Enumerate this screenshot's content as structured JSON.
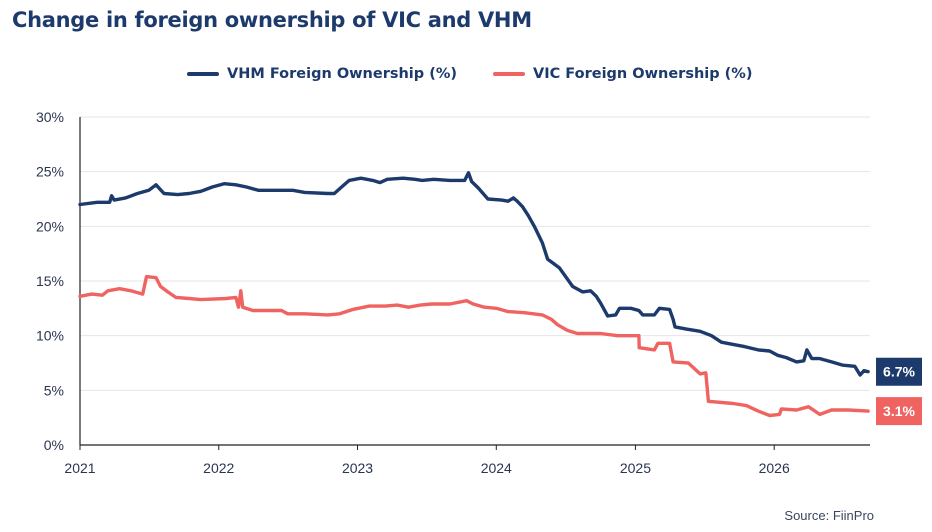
{
  "title": "Change in foreign ownership of VIC and VHM",
  "source": "Source: FiinPro",
  "colors": {
    "vhm": "#1c3a6b",
    "vic": "#ef6461",
    "axis": "#222222",
    "grid": "#e6e6e6",
    "title": "#1c3a6b"
  },
  "chart_data": {
    "type": "line",
    "title": "Change in foreign ownership of VIC and VHM",
    "xlabel": "",
    "ylabel": "",
    "x_ticks": [
      "2021",
      "2022",
      "2023",
      "2024",
      "2025",
      "2026"
    ],
    "y_ticks": [
      "0%",
      "5%",
      "10%",
      "15%",
      "20%",
      "25%",
      "30%"
    ],
    "xlim": [
      "2021-01-01",
      "2026-09-10"
    ],
    "ylim": [
      0,
      30
    ],
    "grid": "horizontal",
    "legend_position": "top-center",
    "series": [
      {
        "name": "VHM Foreign Ownership (%)",
        "color": "#1c3a6b",
        "end_label": "6.7%",
        "points": [
          [
            "2021-01-01",
            22.0
          ],
          [
            "2021-02-15",
            22.2
          ],
          [
            "2021-03-20",
            22.2
          ],
          [
            "2021-03-25",
            22.8
          ],
          [
            "2021-04-01",
            22.4
          ],
          [
            "2021-05-01",
            22.6
          ],
          [
            "2021-06-01",
            23.0
          ],
          [
            "2021-07-01",
            23.3
          ],
          [
            "2021-07-20",
            23.8
          ],
          [
            "2021-08-10",
            23.0
          ],
          [
            "2021-09-15",
            22.9
          ],
          [
            "2021-10-15",
            23.0
          ],
          [
            "2021-11-15",
            23.2
          ],
          [
            "2021-12-15",
            23.6
          ],
          [
            "2022-01-15",
            23.9
          ],
          [
            "2022-02-15",
            23.8
          ],
          [
            "2022-03-15",
            23.6
          ],
          [
            "2022-04-15",
            23.3
          ],
          [
            "2022-06-01",
            23.3
          ],
          [
            "2022-07-15",
            23.3
          ],
          [
            "2022-08-15",
            23.1
          ],
          [
            "2022-10-15",
            23.0
          ],
          [
            "2022-11-01",
            23.0
          ],
          [
            "2022-11-20",
            23.6
          ],
          [
            "2022-12-10",
            24.2
          ],
          [
            "2023-01-10",
            24.4
          ],
          [
            "2023-02-10",
            24.2
          ],
          [
            "2023-03-01",
            24.0
          ],
          [
            "2023-03-20",
            24.3
          ],
          [
            "2023-05-01",
            24.4
          ],
          [
            "2023-06-01",
            24.3
          ],
          [
            "2023-06-20",
            24.2
          ],
          [
            "2023-07-20",
            24.3
          ],
          [
            "2023-09-01",
            24.2
          ],
          [
            "2023-10-10",
            24.2
          ],
          [
            "2023-10-20",
            24.9
          ],
          [
            "2023-10-28",
            24.1
          ],
          [
            "2023-11-15",
            23.5
          ],
          [
            "2023-12-10",
            22.5
          ],
          [
            "2024-01-15",
            22.4
          ],
          [
            "2024-02-01",
            22.3
          ],
          [
            "2024-02-15",
            22.6
          ],
          [
            "2024-02-25",
            22.3
          ],
          [
            "2024-03-10",
            21.8
          ],
          [
            "2024-03-25",
            21.0
          ],
          [
            "2024-04-10",
            20.0
          ],
          [
            "2024-05-01",
            18.5
          ],
          [
            "2024-05-15",
            17.0
          ],
          [
            "2024-06-15",
            16.2
          ],
          [
            "2024-07-20",
            14.5
          ],
          [
            "2024-08-15",
            14.0
          ],
          [
            "2024-09-05",
            14.1
          ],
          [
            "2024-09-20",
            13.6
          ],
          [
            "2024-10-01",
            13.0
          ],
          [
            "2024-10-20",
            11.8
          ],
          [
            "2024-11-10",
            11.9
          ],
          [
            "2024-11-20",
            12.5
          ],
          [
            "2024-12-20",
            12.5
          ],
          [
            "2025-01-10",
            12.3
          ],
          [
            "2025-01-20",
            11.9
          ],
          [
            "2025-02-20",
            11.9
          ],
          [
            "2025-03-05",
            12.5
          ],
          [
            "2025-04-01",
            12.4
          ],
          [
            "2025-04-10",
            11.5
          ],
          [
            "2025-04-15",
            10.8
          ],
          [
            "2025-05-15",
            10.6
          ],
          [
            "2025-06-20",
            10.4
          ],
          [
            "2025-07-20",
            10.0
          ],
          [
            "2025-08-15",
            9.4
          ],
          [
            "2025-09-15",
            9.2
          ],
          [
            "2025-10-15",
            9.0
          ],
          [
            "2025-11-20",
            8.7
          ],
          [
            "2025-12-20",
            8.6
          ],
          [
            "2026-01-10",
            8.2
          ],
          [
            "2026-02-01",
            8.0
          ],
          [
            "2026-03-01",
            7.6
          ],
          [
            "2026-03-20",
            7.7
          ],
          [
            "2026-03-28",
            8.7
          ],
          [
            "2026-04-10",
            7.9
          ],
          [
            "2026-05-01",
            7.9
          ],
          [
            "2026-06-01",
            7.6
          ],
          [
            "2026-07-01",
            7.3
          ],
          [
            "2026-08-01",
            7.2
          ],
          [
            "2026-08-15",
            6.4
          ],
          [
            "2026-08-25",
            6.8
          ],
          [
            "2026-09-05",
            6.7
          ]
        ]
      },
      {
        "name": "VIC Foreign Ownership (%)",
        "color": "#ef6461",
        "end_label": "3.1%",
        "points": [
          [
            "2021-01-01",
            13.6
          ],
          [
            "2021-02-01",
            13.8
          ],
          [
            "2021-03-01",
            13.7
          ],
          [
            "2021-03-15",
            14.1
          ],
          [
            "2021-04-15",
            14.3
          ],
          [
            "2021-05-15",
            14.1
          ],
          [
            "2021-06-15",
            13.8
          ],
          [
            "2021-06-25",
            15.4
          ],
          [
            "2021-07-20",
            15.3
          ],
          [
            "2021-08-01",
            14.5
          ],
          [
            "2021-08-20",
            14.0
          ],
          [
            "2021-09-10",
            13.5
          ],
          [
            "2021-10-15",
            13.4
          ],
          [
            "2021-11-15",
            13.3
          ],
          [
            "2022-01-20",
            13.4
          ],
          [
            "2022-02-15",
            13.5
          ],
          [
            "2022-02-22",
            12.6
          ],
          [
            "2022-02-28",
            14.1
          ],
          [
            "2022-03-05",
            12.6
          ],
          [
            "2022-04-01",
            12.3
          ],
          [
            "2022-06-15",
            12.3
          ],
          [
            "2022-07-01",
            12.0
          ],
          [
            "2022-08-15",
            12.0
          ],
          [
            "2022-10-15",
            11.9
          ],
          [
            "2022-11-15",
            12.0
          ],
          [
            "2022-12-20",
            12.4
          ],
          [
            "2023-02-01",
            12.7
          ],
          [
            "2023-03-15",
            12.7
          ],
          [
            "2023-04-15",
            12.8
          ],
          [
            "2023-05-15",
            12.6
          ],
          [
            "2023-06-15",
            12.8
          ],
          [
            "2023-07-15",
            12.9
          ],
          [
            "2023-09-01",
            12.9
          ],
          [
            "2023-10-15",
            13.2
          ],
          [
            "2023-11-01",
            12.9
          ],
          [
            "2023-12-01",
            12.6
          ],
          [
            "2024-01-01",
            12.5
          ],
          [
            "2024-02-01",
            12.2
          ],
          [
            "2024-03-15",
            12.1
          ],
          [
            "2024-05-01",
            11.9
          ],
          [
            "2024-05-25",
            11.5
          ],
          [
            "2024-06-10",
            11.0
          ],
          [
            "2024-07-05",
            10.5
          ],
          [
            "2024-08-01",
            10.2
          ],
          [
            "2024-10-01",
            10.2
          ],
          [
            "2024-11-15",
            10.0
          ],
          [
            "2025-01-10",
            10.0
          ],
          [
            "2025-01-11",
            8.9
          ],
          [
            "2025-02-20",
            8.7
          ],
          [
            "2025-03-01",
            9.3
          ],
          [
            "2025-04-01",
            9.3
          ],
          [
            "2025-04-10",
            7.6
          ],
          [
            "2025-05-20",
            7.5
          ],
          [
            "2025-06-20",
            6.5
          ],
          [
            "2025-07-05",
            6.6
          ],
          [
            "2025-07-12",
            4.0
          ],
          [
            "2025-09-15",
            3.8
          ],
          [
            "2025-10-20",
            3.6
          ],
          [
            "2025-11-20",
            3.1
          ],
          [
            "2025-12-20",
            2.7
          ],
          [
            "2026-01-15",
            2.8
          ],
          [
            "2026-01-20",
            3.3
          ],
          [
            "2026-03-01",
            3.2
          ],
          [
            "2026-04-01",
            3.5
          ],
          [
            "2026-05-01",
            2.8
          ],
          [
            "2026-06-01",
            3.2
          ],
          [
            "2026-07-15",
            3.2
          ],
          [
            "2026-09-05",
            3.1
          ]
        ]
      }
    ]
  }
}
